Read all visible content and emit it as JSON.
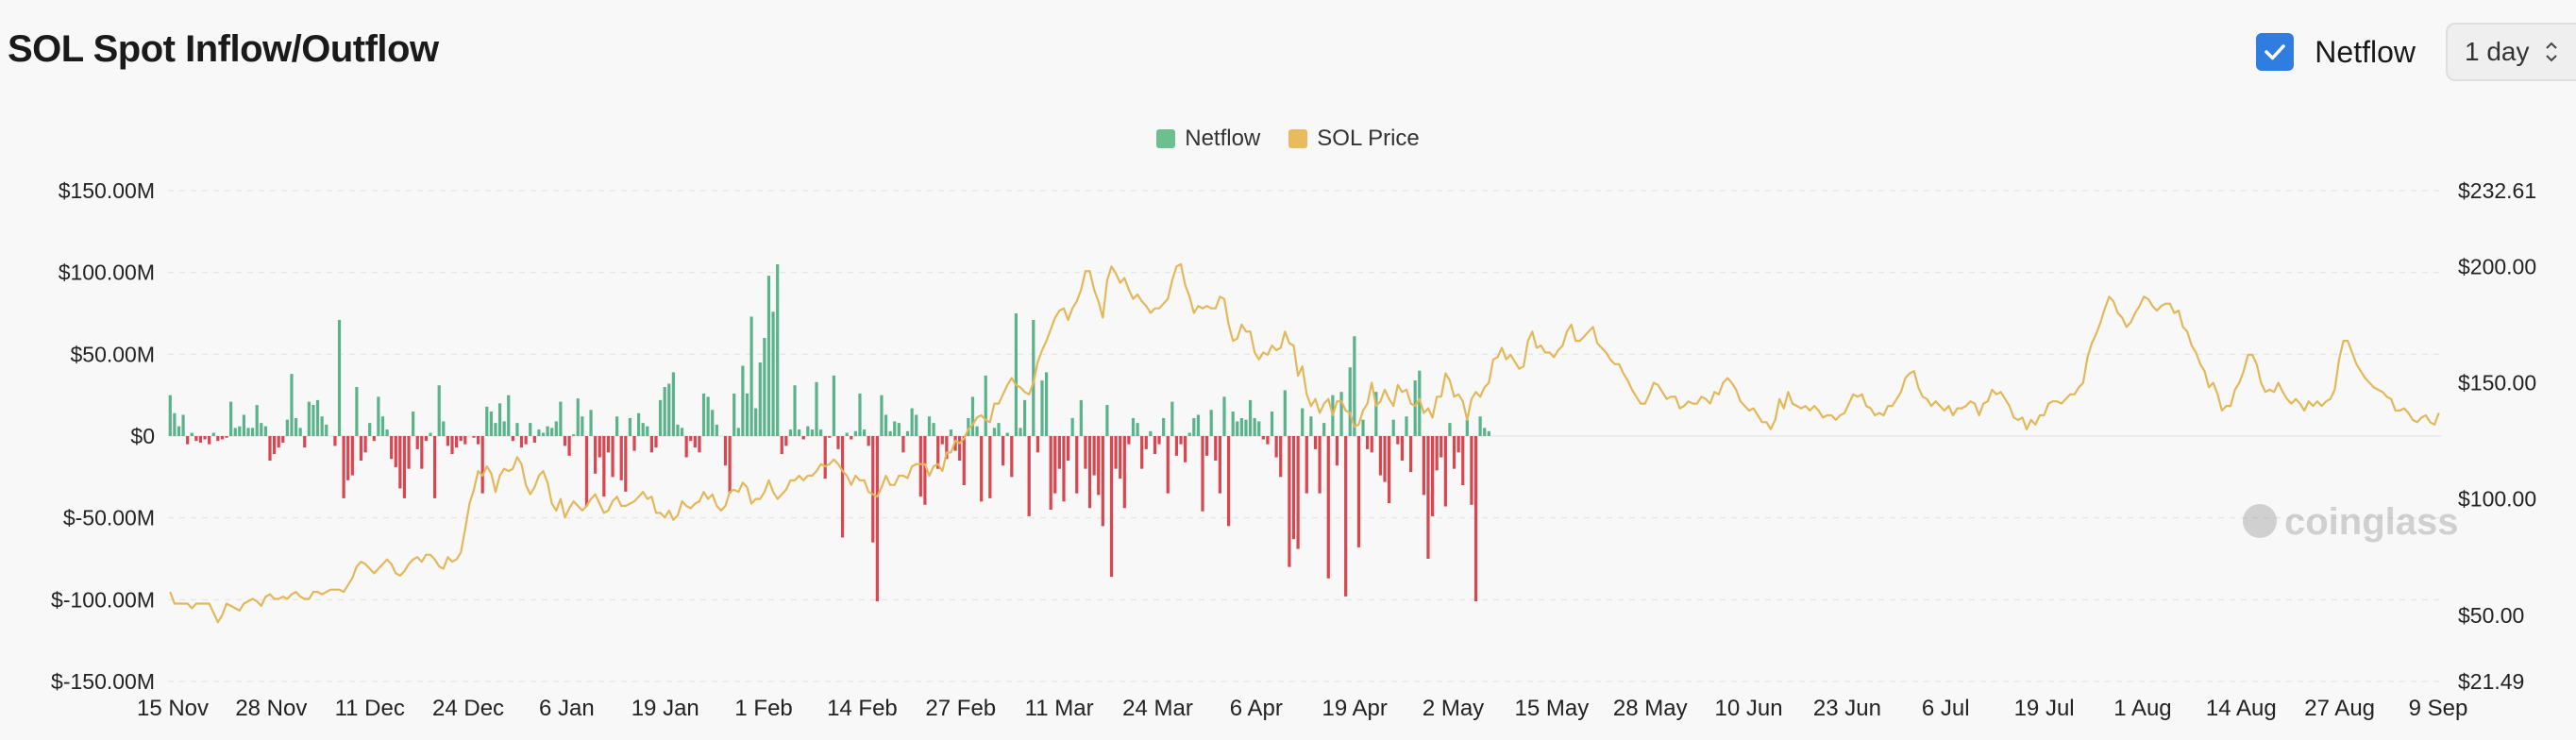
{
  "title": "SOL Spot Inflow/Outflow",
  "controls": {
    "netflow_toggle": {
      "label": "Netflow",
      "checked": true
    },
    "interval": {
      "value": "1 day"
    }
  },
  "watermark": "coinglass",
  "colors": {
    "inflow": "#5bb38b",
    "outflow": "#d8474f",
    "price": "#e2b85a",
    "checkbox": "#2f7de1"
  },
  "chart_data": {
    "type": "bar",
    "legend": [
      {
        "name": "Netflow",
        "color": "#6cc08f"
      },
      {
        "name": "SOL Price",
        "color": "#e8bb5e"
      }
    ],
    "legend_position": "top-center",
    "grid": true,
    "x_tick_labels": [
      "15 Nov",
      "28 Nov",
      "11 Dec",
      "24 Dec",
      "6 Jan",
      "19 Jan",
      "1 Feb",
      "14 Feb",
      "27 Feb",
      "11 Mar",
      "24 Mar",
      "6 Apr",
      "19 Apr",
      "2 May",
      "15 May",
      "28 May",
      "10 Jun",
      "23 Jun",
      "6 Jul",
      "19 Jul",
      "1 Aug",
      "14 Aug",
      "27 Aug",
      "9 Sep"
    ],
    "y_left": {
      "ylim": [
        -150,
        150
      ],
      "unit": "M USD",
      "tick_labels": [
        "$150.00M",
        "$100.00M",
        "$50.00M",
        "$0",
        "$-50.00M",
        "$-100.00M",
        "$-150.00M"
      ]
    },
    "y_right": {
      "ylim": [
        21.49,
        232.61
      ],
      "tick_values": [
        232.61,
        200,
        150,
        100,
        50,
        21.49
      ],
      "tick_labels": [
        "$232.61",
        "$200.00",
        "$150.00",
        "$100.00",
        "$50.00",
        "$21.49"
      ]
    },
    "series": [
      {
        "name": "Netflow",
        "type": "bar",
        "start_date": "2023-11-15",
        "values": [
          25,
          14,
          6,
          13,
          -5,
          2,
          -3,
          -4,
          -2,
          -5,
          2,
          -3,
          -2,
          -1,
          21,
          5,
          6,
          13,
          5,
          5,
          19,
          8,
          6,
          -15,
          -11,
          -7,
          -4,
          10,
          38,
          11,
          5,
          -7,
          21,
          19,
          22,
          12,
          7,
          0,
          -6,
          71,
          -38,
          -27,
          -24,
          30,
          -15,
          -10,
          8,
          -3,
          24,
          12,
          4,
          -14,
          -19,
          -32,
          -38,
          -20,
          15,
          -8,
          -20,
          -3,
          2,
          -38,
          31,
          9,
          -6,
          -11,
          -7,
          -3,
          -5,
          0,
          -1,
          -5,
          -35,
          18,
          15,
          8,
          20,
          9,
          25,
          -3,
          8,
          -7,
          -5,
          8,
          -4,
          4,
          2,
          6,
          5,
          9,
          21,
          -6,
          -12,
          1,
          23,
          12,
          -43,
          16,
          -23,
          -13,
          -37,
          -10,
          -25,
          12,
          -27,
          -34,
          11,
          -9,
          14,
          8,
          6,
          -10,
          -7,
          22,
          30,
          32,
          39,
          7,
          5,
          -13,
          -3,
          -7,
          -10,
          26,
          24,
          16,
          7,
          0,
          -18,
          -35,
          26,
          5,
          43,
          26,
          73,
          17,
          45,
          60,
          98,
          76,
          105,
          -11,
          -6,
          4,
          31,
          4,
          -2,
          6,
          4,
          33,
          4,
          -26,
          -1,
          37,
          -8,
          -62,
          2,
          -2,
          3,
          26,
          4,
          -6,
          -65,
          -101,
          25,
          13,
          3,
          9,
          8,
          -10,
          3,
          17,
          13,
          -37,
          -42,
          12,
          8,
          -20,
          -5,
          -14,
          4,
          -9,
          -15,
          -30,
          11,
          24,
          6,
          -40,
          37,
          -38,
          5,
          8,
          -18,
          2,
          -25,
          75,
          5,
          22,
          -49,
          71,
          -10,
          34,
          39,
          -45,
          -35,
          -20,
          -40,
          -15,
          11,
          -35,
          22,
          -20,
          -44,
          -24,
          -36,
          -55,
          19,
          -86,
          -20,
          -26,
          -44,
          -5,
          11,
          8,
          -20,
          -8,
          3,
          -11,
          -5,
          11,
          -35,
          21,
          -12,
          -5,
          -16,
          2,
          11,
          13,
          -46,
          -12,
          16,
          -15,
          -35,
          24,
          -55,
          15,
          9,
          11,
          10,
          22,
          11,
          9,
          -2,
          -5,
          15,
          -13,
          -25,
          28,
          -80,
          -63,
          -69,
          17,
          -35,
          12,
          -8,
          -35,
          8,
          -87,
          25,
          -18,
          27,
          -98,
          42,
          61,
          -68,
          10,
          -8,
          -10,
          27,
          -24,
          -28,
          -41,
          10,
          -5,
          -15,
          12,
          -22,
          34,
          40,
          -36,
          -75,
          -49,
          -21,
          -13,
          -43,
          8,
          -20,
          -10,
          -30,
          10,
          -42,
          -101,
          12,
          5,
          3
        ]
      },
      {
        "name": "SOL Price",
        "type": "line",
        "start_date": "2023-11-15",
        "values": [
          60,
          55,
          55,
          55,
          55,
          53,
          55,
          55,
          55,
          55,
          51,
          47,
          50,
          55,
          54,
          53,
          52,
          55,
          56,
          57,
          56,
          54,
          58,
          59,
          57,
          57,
          58,
          57,
          59,
          60,
          58,
          57,
          57,
          60,
          60,
          59,
          60,
          61,
          61,
          61,
          60,
          63,
          66,
          71,
          73,
          72,
          70,
          68,
          70,
          72,
          74,
          72,
          68,
          67,
          69,
          72,
          74,
          75,
          73,
          76,
          76,
          74,
          71,
          70,
          75,
          73,
          74,
          77,
          87,
          98,
          104,
          112,
          110,
          114,
          111,
          103,
          110,
          113,
          112,
          113,
          118,
          115,
          106,
          102,
          105,
          110,
          112,
          107,
          98,
          95,
          100,
          92,
          96,
          99,
          97,
          95,
          97,
          100,
          102,
          98,
          94,
          95,
          99,
          101,
          97,
          97,
          98,
          99,
          101,
          103,
          100,
          101,
          94,
          94,
          92,
          95,
          91,
          93,
          99,
          97,
          96,
          98,
          99,
          103,
          100,
          102,
          97,
          95,
          97,
          103,
          104,
          103,
          107,
          105,
          98,
          100,
          100,
          103,
          108,
          103,
          100,
          102,
          104,
          108,
          108,
          110,
          108,
          110,
          110,
          112,
          115,
          114,
          115,
          117,
          115,
          112,
          110,
          106,
          110,
          108,
          108,
          103,
          102,
          101,
          105,
          110,
          106,
          106,
          110,
          110,
          109,
          114,
          115,
          115,
          115,
          110,
          114,
          115,
          112,
          120,
          120,
          125,
          124,
          126,
          130,
          132,
          135,
          136,
          134,
          133,
          141,
          141,
          145,
          149,
          152,
          149,
          148,
          146,
          145,
          150,
          159,
          164,
          168,
          173,
          178,
          181,
          182,
          177,
          182,
          185,
          190,
          198,
          198,
          190,
          185,
          178,
          194,
          200,
          197,
          193,
          195,
          190,
          186,
          188,
          185,
          183,
          180,
          182,
          182,
          184,
          186,
          194,
          200,
          201,
          192,
          187,
          180,
          183,
          182,
          183,
          182,
          182,
          187,
          186,
          175,
          168,
          169,
          175,
          172,
          172,
          163,
          160,
          163,
          162,
          166,
          164,
          165,
          172,
          167,
          166,
          153,
          157,
          145,
          140,
          143,
          137,
          141,
          143,
          136,
          142,
          142,
          138,
          137,
          131,
          132,
          138,
          141,
          150,
          140,
          142,
          147,
          143,
          140,
          149,
          146,
          147,
          141,
          140,
          143,
          137,
          139,
          135,
          144,
          144,
          154,
          151,
          144,
          145,
          142,
          134,
          143,
          146,
          144,
          148,
          150,
          160,
          161,
          165,
          160,
          162,
          159,
          156,
          157,
          168,
          172,
          165,
          166,
          163,
          163,
          161,
          164,
          166,
          172,
          175,
          168,
          168,
          170,
          172,
          174,
          167,
          165,
          163,
          160,
          158,
          158,
          154,
          151,
          147,
          144,
          141,
          141,
          145,
          150,
          149,
          146,
          143,
          144,
          144,
          139,
          140,
          142,
          141,
          141,
          144,
          143,
          141,
          146,
          145,
          150,
          152,
          150,
          147,
          142,
          140,
          138,
          139,
          136,
          133,
          133,
          130,
          134,
          143,
          139,
          146,
          141,
          140,
          139,
          140,
          138,
          140,
          138,
          135,
          136,
          136,
          134,
          136,
          137,
          141,
          145,
          144,
          145,
          140,
          139,
          136,
          137,
          136,
          140,
          140,
          143,
          146,
          152,
          154,
          155,
          148,
          144,
          143,
          140,
          142,
          140,
          138,
          140,
          136,
          139,
          139,
          140,
          142,
          141,
          136,
          141,
          142,
          147,
          145,
          146,
          143,
          140,
          135,
          134,
          135,
          130,
          134,
          132,
          136,
          136,
          141,
          142,
          142,
          141,
          143,
          145,
          145,
          148,
          150,
          161,
          167,
          171,
          176,
          182,
          187,
          185,
          180,
          178,
          174,
          176,
          180,
          183,
          187,
          186,
          183,
          181,
          183,
          184,
          184,
          180,
          181,
          174,
          172,
          166,
          163,
          158,
          155,
          148,
          150,
          145,
          138,
          140,
          140,
          147,
          150,
          155,
          162,
          162,
          158,
          150,
          146,
          147,
          146,
          150,
          146,
          143,
          141,
          143,
          141,
          138,
          142,
          140,
          142,
          140,
          142,
          143,
          147,
          160,
          168,
          168,
          163,
          158,
          155,
          152,
          150,
          148,
          147,
          146,
          144,
          143,
          138,
          138,
          139,
          137,
          134,
          133,
          135,
          136,
          133,
          132,
          137
        ]
      }
    ]
  }
}
